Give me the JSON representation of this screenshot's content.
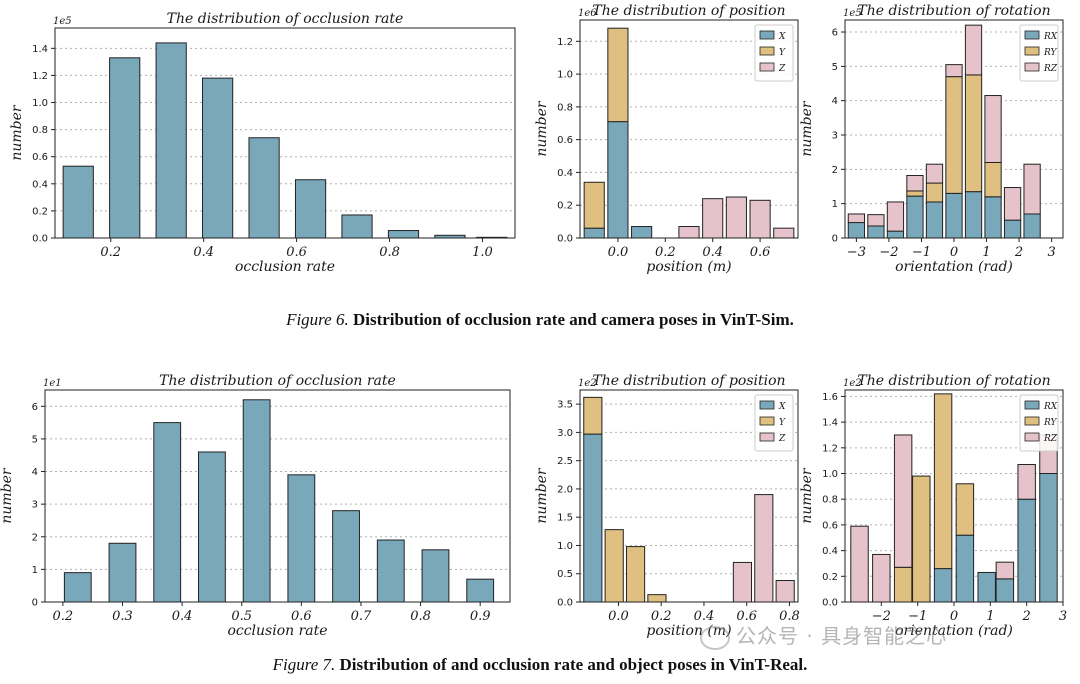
{
  "colors": {
    "X": "#7aa8bb",
    "Y": "#dfc080",
    "Z": "#e6c3cb",
    "bar": "#7aa8bb",
    "edge": "#222222",
    "grid": "#b0b0b0"
  },
  "captions": {
    "fig6": {
      "label": "Figure 6.",
      "text": "Distribution of occlusion rate and camera poses in VinT-Sim."
    },
    "fig7": {
      "label": "Figure 7.",
      "text": "Distribution of and occlusion rate and object poses in VinT-Real."
    }
  },
  "watermark": "公众号 · 具身智能之心",
  "chart_data": [
    {
      "id": "sim-occlusion",
      "type": "bar",
      "title": "The distribution of occlusion rate",
      "xlabel": "occlusion rate",
      "ylabel": "number",
      "exponent": "1e5",
      "x": [
        0.13,
        0.23,
        0.33,
        0.43,
        0.53,
        0.63,
        0.73,
        0.83,
        0.93,
        1.02
      ],
      "values": [
        0.53,
        1.33,
        1.44,
        1.18,
        0.74,
        0.43,
        0.17,
        0.055,
        0.02,
        0.005
      ],
      "bar_width": 0.065,
      "xlim": [
        0.08,
        1.07
      ],
      "ylim": [
        0,
        1.55
      ],
      "xticks": [
        0.2,
        0.4,
        0.6,
        0.8,
        1.0
      ],
      "xtick_labels": [
        "0.2",
        "0.4",
        "0.6",
        "0.8",
        "1.0"
      ],
      "yticks": [
        0,
        0.2,
        0.4,
        0.6,
        0.8,
        1.0,
        1.2,
        1.4
      ],
      "ytick_labels": [
        "0.0",
        "0.2",
        "0.4",
        "0.6",
        "0.8",
        "1.0",
        "1.2",
        "1.4"
      ],
      "legend": []
    },
    {
      "id": "sim-position",
      "type": "stacked-bar",
      "title": "The distribution of position",
      "xlabel": "position (m)",
      "ylabel": "number",
      "exponent": "1e6",
      "x": [
        -0.1,
        0.0,
        0.1,
        0.2,
        0.3,
        0.4,
        0.5,
        0.6,
        0.7
      ],
      "series": [
        {
          "name": "X",
          "values": [
            0.06,
            0.71,
            0.07,
            0.0,
            0.0,
            0.0,
            0.0,
            0.0,
            0.0
          ]
        },
        {
          "name": "Y",
          "values": [
            0.28,
            0.57,
            0.0,
            0.0,
            0.0,
            0.0,
            0.0,
            0.0,
            0.0
          ]
        },
        {
          "name": "Z",
          "values": [
            0.0,
            0.0,
            0.0,
            0.0,
            0.07,
            0.24,
            0.25,
            0.23,
            0.06
          ]
        }
      ],
      "bar_width": 0.085,
      "xlim": [
        -0.16,
        0.76
      ],
      "ylim": [
        0,
        1.33
      ],
      "xticks": [
        0.0,
        0.2,
        0.4,
        0.6
      ],
      "xtick_labels": [
        "0.0",
        "0.2",
        "0.4",
        "0.6"
      ],
      "yticks": [
        0,
        0.2,
        0.4,
        0.6,
        0.8,
        1.0,
        1.2
      ],
      "ytick_labels": [
        "0.0",
        "0.2",
        "0.4",
        "0.6",
        "0.8",
        "1.0",
        "1.2"
      ],
      "legend": [
        "X",
        "Y",
        "Z"
      ],
      "legend_position": "top-right"
    },
    {
      "id": "sim-rotation",
      "type": "stacked-bar",
      "title": "The distribution of rotation",
      "xlabel": "orientation (rad)",
      "ylabel": "number",
      "exponent": "1e5",
      "x": [
        -3.0,
        -2.4,
        -1.8,
        -1.2,
        -0.6,
        0.0,
        0.6,
        1.2,
        1.8,
        2.4,
        3.0
      ],
      "series": [
        {
          "name": "RX",
          "values": [
            0.45,
            0.35,
            0.2,
            1.22,
            1.05,
            1.3,
            1.35,
            1.2,
            0.52,
            0.7,
            0.0
          ]
        },
        {
          "name": "RY",
          "values": [
            0.0,
            0.0,
            0.0,
            0.15,
            0.55,
            3.4,
            3.4,
            1.0,
            0.0,
            0.0,
            0.0
          ]
        },
        {
          "name": "RZ",
          "values": [
            0.25,
            0.33,
            0.85,
            0.45,
            0.55,
            0.35,
            1.45,
            1.95,
            0.95,
            1.45,
            0.0
          ]
        }
      ],
      "bar_width": 0.5,
      "xlim": [
        -3.35,
        3.35
      ],
      "ylim": [
        0,
        6.35
      ],
      "xticks": [
        -3,
        -2,
        -1,
        0,
        1,
        2,
        3
      ],
      "xtick_labels": [
        "−3",
        "−2",
        "−1",
        "0",
        "1",
        "2",
        "3"
      ],
      "yticks": [
        0,
        1,
        2,
        3,
        4,
        5,
        6
      ],
      "ytick_labels": [
        "0",
        "1",
        "2",
        "3",
        "4",
        "5",
        "6"
      ],
      "legend": [
        "RX",
        "RY",
        "RZ"
      ],
      "legend_position": "top-right"
    },
    {
      "id": "real-occlusion",
      "type": "bar",
      "title": "The distribution of occlusion rate",
      "xlabel": "occlusion rate",
      "ylabel": "number",
      "exponent": "1e1",
      "x": [
        0.225,
        0.3,
        0.375,
        0.45,
        0.525,
        0.6,
        0.675,
        0.75,
        0.825,
        0.9
      ],
      "values": [
        0.9,
        1.8,
        5.5,
        4.6,
        6.2,
        3.9,
        2.8,
        1.9,
        1.6,
        0.7
      ],
      "bar_width": 0.045,
      "xlim": [
        0.17,
        0.95
      ],
      "ylim": [
        0,
        6.5
      ],
      "xticks": [
        0.2,
        0.3,
        0.4,
        0.5,
        0.6,
        0.7,
        0.8,
        0.9
      ],
      "xtick_labels": [
        "0.2",
        "0.3",
        "0.4",
        "0.5",
        "0.6",
        "0.7",
        "0.8",
        "0.9"
      ],
      "yticks": [
        0,
        1,
        2,
        3,
        4,
        5,
        6
      ],
      "ytick_labels": [
        "0",
        "1",
        "2",
        "3",
        "4",
        "5",
        "6"
      ],
      "legend": []
    },
    {
      "id": "real-position",
      "type": "stacked-bar",
      "title": "The distribution of position",
      "xlabel": "position (m)",
      "ylabel": "number",
      "exponent": "1e2",
      "x": [
        -0.12,
        -0.02,
        0.08,
        0.18,
        0.28,
        0.38,
        0.48,
        0.58,
        0.68,
        0.78
      ],
      "series": [
        {
          "name": "X",
          "values": [
            2.97,
            0.0,
            0.0,
            0.0,
            0.0,
            0.0,
            0.0,
            0.0,
            0.0,
            0.0
          ]
        },
        {
          "name": "Y",
          "values": [
            0.65,
            1.28,
            0.98,
            0.13,
            0.0,
            0.0,
            0.0,
            0.0,
            0.0,
            0.0
          ]
        },
        {
          "name": "Z",
          "values": [
            0.0,
            0.0,
            0.0,
            0.0,
            0.0,
            0.0,
            0.0,
            0.7,
            1.9,
            0.38
          ]
        }
      ],
      "bar_width": 0.085,
      "xlim": [
        -0.18,
        0.84
      ],
      "ylim": [
        0,
        3.75
      ],
      "xticks": [
        0.0,
        0.2,
        0.4,
        0.6,
        0.8
      ],
      "xtick_labels": [
        "0.0",
        "0.2",
        "0.4",
        "0.6",
        "0.8"
      ],
      "yticks": [
        0,
        0.5,
        1.0,
        1.5,
        2.0,
        2.5,
        3.0,
        3.5
      ],
      "ytick_labels": [
        "0.0",
        "0.5",
        "1.0",
        "1.5",
        "2.0",
        "2.5",
        "3.0",
        "3.5"
      ],
      "legend": [
        "X",
        "Y",
        "Z"
      ],
      "legend_position": "top-right"
    },
    {
      "id": "real-rotation",
      "type": "stacked-bar",
      "title": "The distribution of rotation",
      "xlabel": "orientation (rad)",
      "ylabel": "number",
      "exponent": "1e2",
      "x": [
        -2.6,
        -2.0,
        -1.4,
        -0.9,
        -0.3,
        0.3,
        0.9,
        1.4,
        2.0,
        2.6
      ],
      "series": [
        {
          "name": "RX",
          "values": [
            0.0,
            0.0,
            0.0,
            0.0,
            0.26,
            0.52,
            0.23,
            0.18,
            0.8,
            1.0
          ]
        },
        {
          "name": "RY",
          "values": [
            0.0,
            0.0,
            0.27,
            0.98,
            1.36,
            0.4,
            0.0,
            0.0,
            0.0,
            0.0
          ]
        },
        {
          "name": "RZ",
          "values": [
            0.59,
            0.37,
            1.03,
            0.0,
            0.0,
            0.0,
            0.0,
            0.13,
            0.27,
            0.3
          ]
        }
      ],
      "bar_width": 0.48,
      "xlim": [
        -3.0,
        3.0
      ],
      "ylim": [
        0,
        1.65
      ],
      "xticks": [
        -2,
        -1,
        0,
        1,
        2,
        3
      ],
      "xtick_labels": [
        "−2",
        "−1",
        "0",
        "1",
        "2",
        "3"
      ],
      "yticks": [
        0,
        0.2,
        0.4,
        0.6,
        0.8,
        1.0,
        1.2,
        1.4,
        1.6
      ],
      "ytick_labels": [
        "0.0",
        "0.2",
        "0.4",
        "0.6",
        "0.8",
        "1.0",
        "1.2",
        "1.4",
        "1.6"
      ],
      "legend": [
        "RX",
        "RY",
        "RZ"
      ],
      "legend_position": "top-right"
    }
  ]
}
